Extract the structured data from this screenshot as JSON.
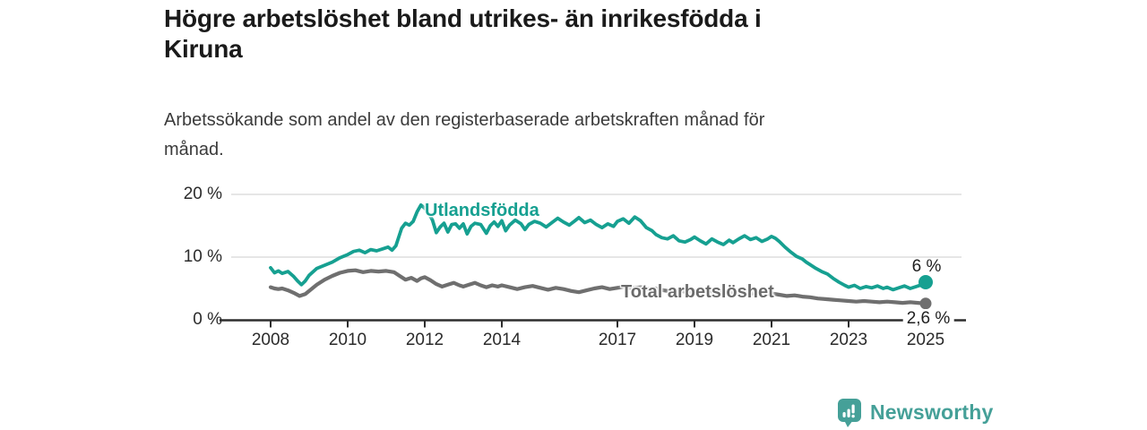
{
  "header": {
    "title_lines": [
      "Högre arbetslöshet bland utrikes- än inrikesfödda i",
      "Kiruna"
    ],
    "subtitle_lines": [
      "Arbetssökande som andel av den registerbaserade arbetskraften månad för",
      "månad."
    ]
  },
  "footer": {
    "brand": "Newsworthy",
    "logo_icon": "bar-chart-speech-bubble-icon",
    "brand_color": "#45a098"
  },
  "colors": {
    "foreign_born_line": "#16a091",
    "total_line": "#6f6f6f",
    "axis": "#2e2e2e",
    "gridline": "#dedede",
    "tick_text": "#2b2b2b"
  },
  "chart_data": {
    "type": "line",
    "title": "Högre arbetslöshet bland utrikes- än inrikesfödda i Kiruna",
    "subtitle": "Arbetssökande som andel av den registerbaserade arbetskraften månad för månad.",
    "xlabel": "",
    "ylabel": "",
    "ylim": [
      0,
      20
    ],
    "xlim": [
      2008,
      2025
    ],
    "grid": "horizontal",
    "legend_position": "inline-labels",
    "y_axis": {
      "ticks": [
        {
          "value": 0,
          "label": "0 %"
        },
        {
          "value": 10,
          "label": "10 %"
        },
        {
          "value": 20,
          "label": "20 %"
        }
      ]
    },
    "x_axis": {
      "ticks": [
        {
          "value": 2008,
          "label": "2008"
        },
        {
          "value": 2010,
          "label": "2010"
        },
        {
          "value": 2012,
          "label": "2012"
        },
        {
          "value": 2014,
          "label": "2014"
        },
        {
          "value": 2017,
          "label": "2017"
        },
        {
          "value": 2019,
          "label": "2019"
        },
        {
          "value": 2021,
          "label": "2021"
        },
        {
          "value": 2023,
          "label": "2023"
        },
        {
          "value": 2025,
          "label": "2025"
        }
      ]
    },
    "series": [
      {
        "name": "Utlandsfödda",
        "color": "#16a091",
        "end_label": "6 %",
        "end_value": 6.0,
        "label_anchor": {
          "year": 2012.0,
          "pct": 17.3
        },
        "points": [
          [
            2008.0,
            8.3
          ],
          [
            2008.1,
            7.5
          ],
          [
            2008.2,
            7.8
          ],
          [
            2008.3,
            7.4
          ],
          [
            2008.45,
            7.7
          ],
          [
            2008.6,
            6.9
          ],
          [
            2008.7,
            6.2
          ],
          [
            2008.8,
            5.6
          ],
          [
            2008.9,
            6.2
          ],
          [
            2009.0,
            7.1
          ],
          [
            2009.2,
            8.2
          ],
          [
            2009.4,
            8.7
          ],
          [
            2009.6,
            9.2
          ],
          [
            2009.8,
            9.9
          ],
          [
            2010.0,
            10.4
          ],
          [
            2010.15,
            10.9
          ],
          [
            2010.3,
            11.1
          ],
          [
            2010.45,
            10.7
          ],
          [
            2010.6,
            11.2
          ],
          [
            2010.75,
            11.0
          ],
          [
            2010.9,
            11.3
          ],
          [
            2011.05,
            11.6
          ],
          [
            2011.15,
            11.1
          ],
          [
            2011.25,
            11.8
          ],
          [
            2011.4,
            14.6
          ],
          [
            2011.5,
            15.4
          ],
          [
            2011.6,
            15.1
          ],
          [
            2011.7,
            15.7
          ],
          [
            2011.8,
            17.2
          ],
          [
            2011.9,
            18.3
          ],
          [
            2012.0,
            17.8
          ],
          [
            2012.1,
            17.0
          ],
          [
            2012.2,
            15.9
          ],
          [
            2012.3,
            13.9
          ],
          [
            2012.4,
            14.8
          ],
          [
            2012.5,
            15.4
          ],
          [
            2012.6,
            14.0
          ],
          [
            2012.7,
            15.2
          ],
          [
            2012.8,
            15.3
          ],
          [
            2012.9,
            14.6
          ],
          [
            2013.0,
            15.3
          ],
          [
            2013.1,
            13.7
          ],
          [
            2013.2,
            14.9
          ],
          [
            2013.3,
            15.4
          ],
          [
            2013.45,
            15.2
          ],
          [
            2013.6,
            13.8
          ],
          [
            2013.7,
            15.0
          ],
          [
            2013.8,
            15.6
          ],
          [
            2013.9,
            14.9
          ],
          [
            2014.0,
            15.8
          ],
          [
            2014.1,
            14.2
          ],
          [
            2014.2,
            15.1
          ],
          [
            2014.35,
            15.9
          ],
          [
            2014.5,
            15.3
          ],
          [
            2014.6,
            14.4
          ],
          [
            2014.7,
            15.2
          ],
          [
            2014.85,
            15.7
          ],
          [
            2015.0,
            15.4
          ],
          [
            2015.15,
            14.8
          ],
          [
            2015.3,
            15.5
          ],
          [
            2015.45,
            16.2
          ],
          [
            2015.6,
            15.6
          ],
          [
            2015.75,
            15.1
          ],
          [
            2015.9,
            15.8
          ],
          [
            2016.0,
            16.3
          ],
          [
            2016.15,
            15.5
          ],
          [
            2016.3,
            15.9
          ],
          [
            2016.45,
            15.2
          ],
          [
            2016.6,
            14.7
          ],
          [
            2016.75,
            15.3
          ],
          [
            2016.9,
            14.9
          ],
          [
            2017.0,
            15.7
          ],
          [
            2017.15,
            16.1
          ],
          [
            2017.3,
            15.4
          ],
          [
            2017.45,
            16.4
          ],
          [
            2017.6,
            15.8
          ],
          [
            2017.75,
            14.7
          ],
          [
            2017.9,
            14.2
          ],
          [
            2018.0,
            13.6
          ],
          [
            2018.15,
            13.1
          ],
          [
            2018.3,
            12.9
          ],
          [
            2018.45,
            13.4
          ],
          [
            2018.6,
            12.6
          ],
          [
            2018.75,
            12.4
          ],
          [
            2018.9,
            12.8
          ],
          [
            2019.0,
            13.2
          ],
          [
            2019.15,
            12.6
          ],
          [
            2019.3,
            12.1
          ],
          [
            2019.45,
            12.9
          ],
          [
            2019.6,
            12.4
          ],
          [
            2019.75,
            12.0
          ],
          [
            2019.9,
            12.7
          ],
          [
            2020.0,
            12.3
          ],
          [
            2020.15,
            12.9
          ],
          [
            2020.3,
            13.4
          ],
          [
            2020.45,
            12.8
          ],
          [
            2020.6,
            13.1
          ],
          [
            2020.75,
            12.5
          ],
          [
            2020.9,
            12.9
          ],
          [
            2021.0,
            13.3
          ],
          [
            2021.1,
            13.0
          ],
          [
            2021.2,
            12.5
          ],
          [
            2021.35,
            11.6
          ],
          [
            2021.5,
            10.8
          ],
          [
            2021.65,
            10.1
          ],
          [
            2021.8,
            9.7
          ],
          [
            2021.9,
            9.2
          ],
          [
            2022.0,
            8.8
          ],
          [
            2022.15,
            8.2
          ],
          [
            2022.3,
            7.7
          ],
          [
            2022.45,
            7.3
          ],
          [
            2022.6,
            6.6
          ],
          [
            2022.75,
            6.0
          ],
          [
            2022.9,
            5.5
          ],
          [
            2023.0,
            5.2
          ],
          [
            2023.15,
            5.5
          ],
          [
            2023.3,
            5.0
          ],
          [
            2023.45,
            5.3
          ],
          [
            2023.6,
            5.1
          ],
          [
            2023.75,
            5.4
          ],
          [
            2023.9,
            5.0
          ],
          [
            2024.0,
            5.2
          ],
          [
            2024.15,
            4.8
          ],
          [
            2024.3,
            5.1
          ],
          [
            2024.45,
            5.4
          ],
          [
            2024.6,
            5.0
          ],
          [
            2024.75,
            5.3
          ],
          [
            2024.9,
            5.6
          ],
          [
            2025.0,
            6.0
          ]
        ]
      },
      {
        "name": "Total arbetslöshet",
        "color": "#6f6f6f",
        "end_label": "2,6 %",
        "end_value": 2.6,
        "label_anchor": {
          "year": 2017.1,
          "pct": 4.3
        },
        "points": [
          [
            2008.0,
            5.2
          ],
          [
            2008.1,
            5.0
          ],
          [
            2008.2,
            4.9
          ],
          [
            2008.3,
            5.0
          ],
          [
            2008.45,
            4.7
          ],
          [
            2008.6,
            4.3
          ],
          [
            2008.75,
            3.8
          ],
          [
            2008.9,
            4.1
          ],
          [
            2009.0,
            4.6
          ],
          [
            2009.2,
            5.6
          ],
          [
            2009.4,
            6.4
          ],
          [
            2009.6,
            7.0
          ],
          [
            2009.8,
            7.5
          ],
          [
            2010.0,
            7.8
          ],
          [
            2010.2,
            7.9
          ],
          [
            2010.4,
            7.6
          ],
          [
            2010.6,
            7.8
          ],
          [
            2010.8,
            7.7
          ],
          [
            2011.0,
            7.8
          ],
          [
            2011.2,
            7.6
          ],
          [
            2011.35,
            7.0
          ],
          [
            2011.5,
            6.4
          ],
          [
            2011.65,
            6.7
          ],
          [
            2011.8,
            6.2
          ],
          [
            2011.9,
            6.6
          ],
          [
            2012.0,
            6.8
          ],
          [
            2012.15,
            6.3
          ],
          [
            2012.3,
            5.7
          ],
          [
            2012.45,
            5.3
          ],
          [
            2012.6,
            5.6
          ],
          [
            2012.75,
            5.9
          ],
          [
            2012.9,
            5.5
          ],
          [
            2013.0,
            5.3
          ],
          [
            2013.15,
            5.6
          ],
          [
            2013.3,
            5.9
          ],
          [
            2013.45,
            5.5
          ],
          [
            2013.6,
            5.2
          ],
          [
            2013.75,
            5.5
          ],
          [
            2013.9,
            5.3
          ],
          [
            2014.0,
            5.5
          ],
          [
            2014.2,
            5.2
          ],
          [
            2014.4,
            4.9
          ],
          [
            2014.6,
            5.2
          ],
          [
            2014.8,
            5.4
          ],
          [
            2015.0,
            5.1
          ],
          [
            2015.2,
            4.8
          ],
          [
            2015.4,
            5.1
          ],
          [
            2015.6,
            4.9
          ],
          [
            2015.8,
            4.6
          ],
          [
            2016.0,
            4.4
          ],
          [
            2016.2,
            4.7
          ],
          [
            2016.4,
            5.0
          ],
          [
            2016.6,
            5.2
          ],
          [
            2016.8,
            4.9
          ],
          [
            2017.0,
            5.1
          ],
          [
            2017.2,
            5.3
          ],
          [
            2017.4,
            5.0
          ],
          [
            2017.6,
            5.2
          ],
          [
            2017.8,
            4.9
          ],
          [
            2018.0,
            5.0
          ],
          [
            2018.2,
            4.7
          ],
          [
            2018.4,
            4.5
          ],
          [
            2018.6,
            4.7
          ],
          [
            2018.8,
            4.4
          ],
          [
            2019.0,
            4.6
          ],
          [
            2019.2,
            4.4
          ],
          [
            2019.4,
            4.6
          ],
          [
            2019.6,
            4.3
          ],
          [
            2019.8,
            4.5
          ],
          [
            2020.0,
            4.2
          ],
          [
            2020.2,
            4.4
          ],
          [
            2020.4,
            4.1
          ],
          [
            2020.6,
            4.3
          ],
          [
            2020.8,
            4.0
          ],
          [
            2021.0,
            4.2
          ],
          [
            2021.2,
            4.0
          ],
          [
            2021.4,
            3.8
          ],
          [
            2021.6,
            3.9
          ],
          [
            2021.8,
            3.7
          ],
          [
            2022.0,
            3.6
          ],
          [
            2022.2,
            3.4
          ],
          [
            2022.4,
            3.3
          ],
          [
            2022.6,
            3.2
          ],
          [
            2022.8,
            3.1
          ],
          [
            2023.0,
            3.0
          ],
          [
            2023.2,
            2.9
          ],
          [
            2023.4,
            3.0
          ],
          [
            2023.6,
            2.9
          ],
          [
            2023.8,
            2.8
          ],
          [
            2024.0,
            2.9
          ],
          [
            2024.2,
            2.8
          ],
          [
            2024.4,
            2.7
          ],
          [
            2024.6,
            2.8
          ],
          [
            2024.8,
            2.7
          ],
          [
            2025.0,
            2.6
          ]
        ]
      }
    ]
  }
}
